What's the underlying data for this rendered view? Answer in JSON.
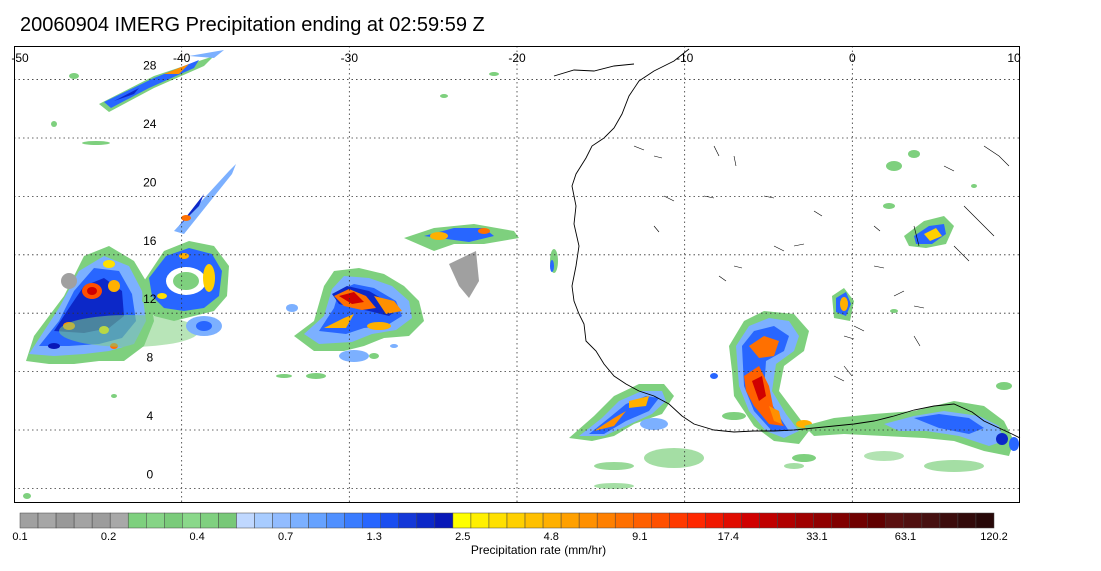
{
  "title": "20060904 IMERG Precipitation ending at 02:59:59 Z",
  "map": {
    "lon_range": [
      -50,
      10
    ],
    "lat_range": [
      -1,
      30.3
    ],
    "lon_ticks": [
      "-50",
      "-40",
      "-30",
      "-20",
      "-10",
      "0",
      "10"
    ],
    "lat_ticks": [
      "28",
      "24",
      "20",
      "16",
      "12",
      "8",
      "4",
      "0"
    ],
    "gridlines": "dotted"
  },
  "colorbar": {
    "label": "Precipitation rate (mm/hr)",
    "tick_labels": [
      "0.1",
      "0.2",
      "0.4",
      "0.7",
      "1.3",
      "2.5",
      "4.8",
      "9.1",
      "17.4",
      "33.1",
      "63.1",
      "120.2"
    ],
    "colors": [
      "#a0a0a0",
      "#a6a6a6",
      "#999999",
      "#a3a3a3",
      "#9c9c9c",
      "#a8a8a8",
      "#7ed07e",
      "#86d486",
      "#7acb7a",
      "#8ad88a",
      "#80d080",
      "#78c878",
      "#c0d8ff",
      "#a8ccff",
      "#92bcff",
      "#7cb0ff",
      "#66a2ff",
      "#5090ff",
      "#3a7cff",
      "#2866ff",
      "#1a4ef0",
      "#1438d8",
      "#0c28c8",
      "#0818b8",
      "#ffff00",
      "#fff000",
      "#ffe000",
      "#ffd000",
      "#ffc000",
      "#ffb000",
      "#ffa000",
      "#ff9000",
      "#ff8000",
      "#ff7000",
      "#ff6000",
      "#ff5000",
      "#ff3a00",
      "#ff2800",
      "#f01800",
      "#e00c00",
      "#d00000",
      "#c00000",
      "#b00000",
      "#a00000",
      "#900000",
      "#800000",
      "#700000",
      "#600000",
      "#5a1010",
      "#501010",
      "#461010",
      "#3c0c0c",
      "#320a0a",
      "#280808"
    ]
  }
}
